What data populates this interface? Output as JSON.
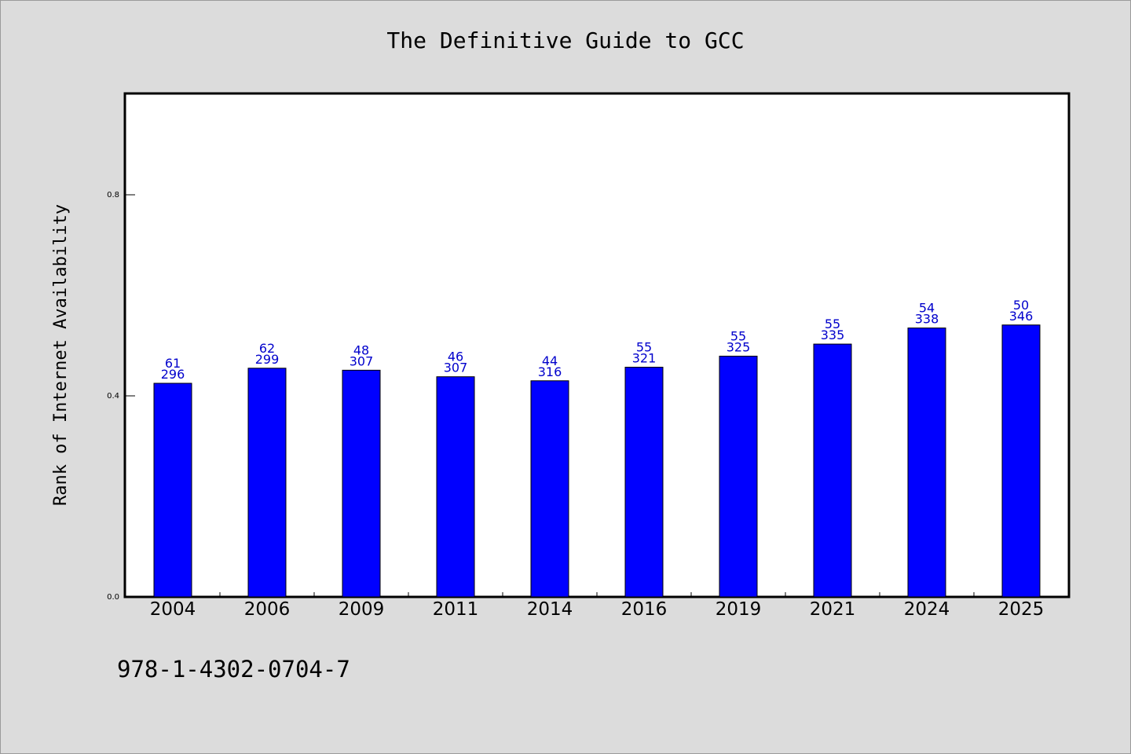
{
  "chart_data": {
    "type": "bar",
    "title": "The Definitive Guide to GCC",
    "ylabel": "Rank of Internet Availability",
    "xlabel": "",
    "footer": "978-1-4302-0704-7",
    "ylim": [
      0,
      1.0
    ],
    "yticks": [
      "0.0",
      "0.4",
      "0.8"
    ],
    "grid": false,
    "bar_color": "#0000ff",
    "label_color": "#0000cc",
    "categories": [
      "2004",
      "2006",
      "2009",
      "2011",
      "2014",
      "2016",
      "2019",
      "2021",
      "2024",
      "2025"
    ],
    "values": [
      0.425,
      0.455,
      0.451,
      0.438,
      0.43,
      0.457,
      0.479,
      0.503,
      0.535,
      0.541
    ],
    "label_top": [
      "61",
      "62",
      "48",
      "46",
      "44",
      "55",
      "55",
      "55",
      "54",
      "50"
    ],
    "label_bottom": [
      "296",
      "299",
      "307",
      "307",
      "316",
      "321",
      "325",
      "335",
      "338",
      "346"
    ]
  }
}
